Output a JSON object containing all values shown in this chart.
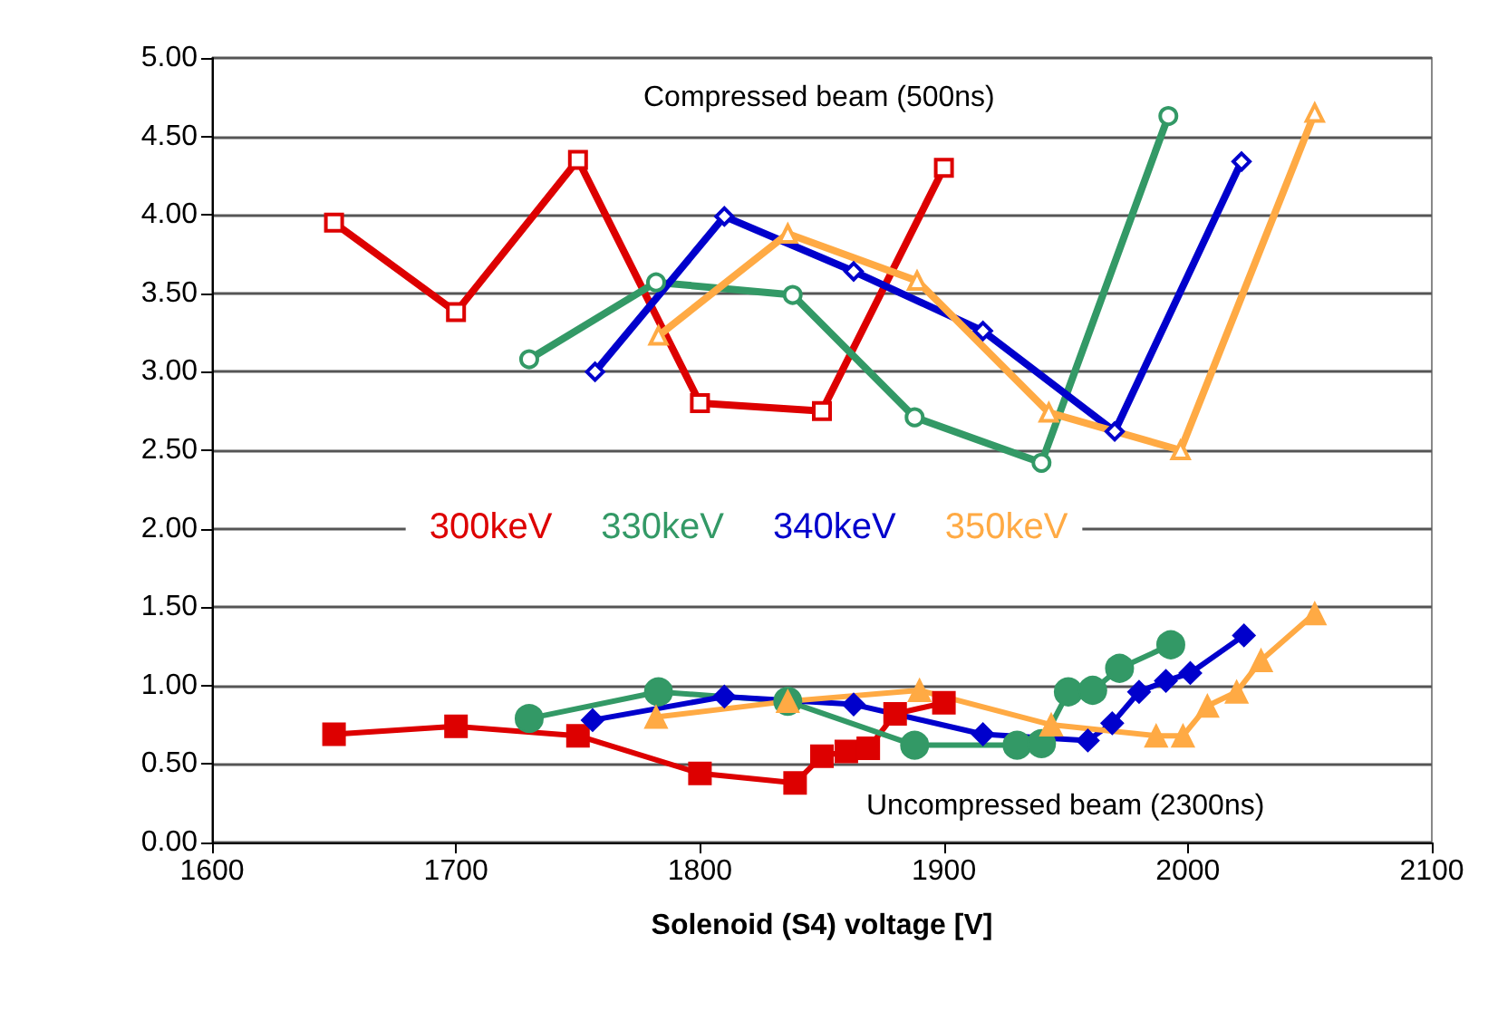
{
  "chart_data": {
    "type": "line",
    "xlabel": "Solenoid (S4) voltage [V]",
    "annotations": [
      "Compressed beam (500ns)",
      "Uncompressed beam (2300ns)"
    ],
    "xlim": [
      1600,
      2100
    ],
    "xticks": [
      1600,
      1700,
      1800,
      1900,
      2000,
      2100
    ],
    "ylim": [
      0,
      5
    ],
    "yticks": [
      {
        "value": 0,
        "label": "0.00"
      },
      {
        "value": 0.5,
        "label": "0.50"
      },
      {
        "value": 1,
        "label": "1.00"
      },
      {
        "value": 1.5,
        "label": "1.50"
      },
      {
        "value": 2,
        "label": "2.00"
      },
      {
        "value": 2.5,
        "label": "2.50"
      },
      {
        "value": 3,
        "label": "3.00"
      },
      {
        "value": 3.5,
        "label": "3.50"
      },
      {
        "value": 4,
        "label": "4.00"
      },
      {
        "value": 4.5,
        "label": "4.50"
      },
      {
        "value": 5,
        "label": "5.00"
      }
    ],
    "grid": "y",
    "legend": "center",
    "series": [
      {
        "name": "300keV",
        "color": "#dd0000",
        "marker": "square",
        "x": [
          1650,
          1700,
          1750,
          1800,
          1850,
          1900
        ],
        "values": [
          3.95,
          3.38,
          4.35,
          2.8,
          2.75,
          4.3
        ]
      },
      {
        "name": "330keV",
        "color": "#339966",
        "marker": "circle",
        "x": [
          1730,
          1782,
          1838,
          1888,
          1940,
          1992
        ],
        "values": [
          3.08,
          3.57,
          3.49,
          2.71,
          2.42,
          4.63
        ]
      },
      {
        "name": "340keV",
        "color": "#0000cc",
        "marker": "diamond",
        "x": [
          1757,
          1810,
          1863,
          1916,
          1970,
          2022
        ],
        "values": [
          3.0,
          3.99,
          3.64,
          3.26,
          2.62,
          4.34
        ]
      },
      {
        "name": "350keV",
        "color": "#ffaa44",
        "marker": "triangle",
        "x": [
          1783,
          1836,
          1889,
          1943,
          1997,
          2052
        ],
        "values": [
          3.23,
          3.88,
          3.58,
          2.74,
          2.5,
          4.65
        ]
      },
      {
        "color": "#dd0000",
        "marker": "square",
        "x": [
          1650,
          1700,
          1750,
          1800,
          1839,
          1850,
          1860,
          1869,
          1880,
          1900
        ],
        "values": [
          0.69,
          0.74,
          0.68,
          0.44,
          0.38,
          0.55,
          0.58,
          0.6,
          0.82,
          0.89
        ]
      },
      {
        "color": "#339966",
        "marker": "circle",
        "x": [
          1730,
          1783,
          1836,
          1888,
          1930,
          1940,
          1951,
          1961,
          1972,
          1993
        ],
        "values": [
          0.79,
          0.96,
          0.9,
          0.62,
          0.62,
          0.63,
          0.96,
          0.97,
          1.11,
          1.26
        ]
      },
      {
        "color": "#0000cc",
        "marker": "diamond",
        "x": [
          1756,
          1810,
          1863,
          1916,
          1959,
          1969,
          1980,
          1991,
          2001,
          2023
        ],
        "values": [
          0.78,
          0.93,
          0.88,
          0.69,
          0.65,
          0.76,
          0.96,
          1.03,
          1.08,
          1.32
        ]
      },
      {
        "color": "#ffaa44",
        "marker": "triangle",
        "x": [
          1782,
          1836,
          1890,
          1944,
          1987,
          1998,
          2008,
          2020,
          2030,
          2052
        ],
        "values": [
          0.8,
          0.9,
          0.97,
          0.75,
          0.68,
          0.68,
          0.87,
          0.96,
          1.16,
          1.46
        ]
      }
    ]
  }
}
